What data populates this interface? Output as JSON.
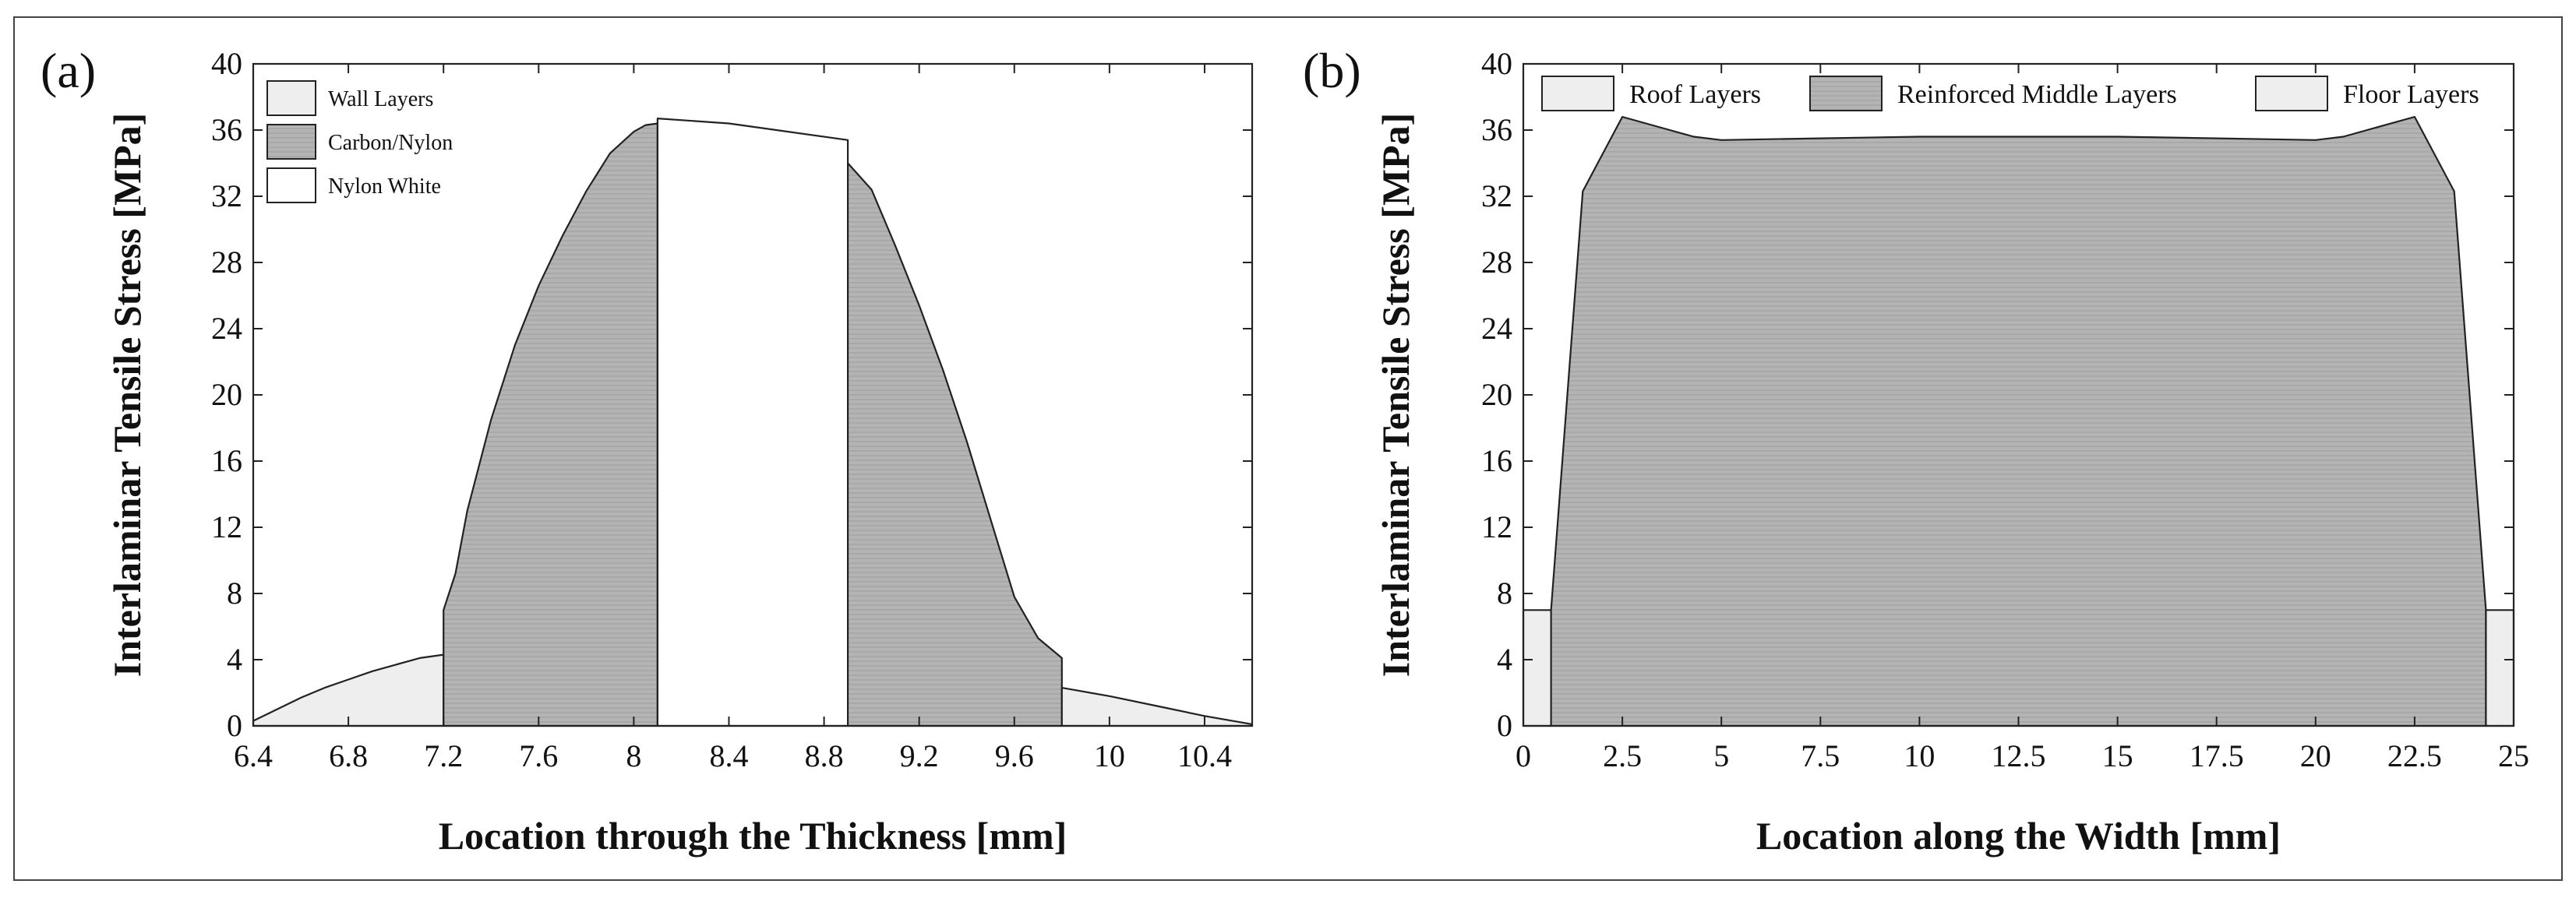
{
  "chart_data": [
    {
      "panel_label": "(a)",
      "type": "area",
      "xlabel": "Location through the Thickness [mm]",
      "ylabel": "Interlaminar Tensile Stress [MPa]",
      "xlim": [
        6.4,
        10.6
      ],
      "ylim": [
        0,
        40
      ],
      "xticks": [
        6.4,
        6.8,
        7.2,
        7.6,
        8,
        8.4,
        8.8,
        9.2,
        9.6,
        10,
        10.4
      ],
      "yticks": [
        0,
        4,
        8,
        12,
        16,
        20,
        24,
        28,
        32,
        36,
        40
      ],
      "legend_position": "top-left",
      "legend": [
        {
          "label": "Wall Layers",
          "color": "#eeeeee"
        },
        {
          "label": "Carbon/Nylon",
          "color": "#b4b4b4"
        },
        {
          "label": "Nylon White",
          "color": "#ffffff"
        }
      ],
      "series": [
        {
          "name": "Wall Layers",
          "color": "#eeeeee",
          "x": [
            6.4,
            6.5,
            6.6,
            6.7,
            6.8,
            6.9,
            7.0,
            7.1,
            7.2
          ],
          "y": [
            0.3,
            1.0,
            1.7,
            2.3,
            2.8,
            3.3,
            3.7,
            4.1,
            4.3
          ]
        },
        {
          "name": "Carbon/Nylon",
          "color": "#b4b4b4",
          "x": [
            7.2,
            7.2,
            7.25,
            7.3,
            7.4,
            7.5,
            7.6,
            7.7,
            7.8,
            7.9,
            8.0,
            8.05,
            8.1,
            8.1
          ],
          "y": [
            0,
            7.0,
            9.2,
            13.0,
            18.5,
            23.0,
            26.6,
            29.6,
            32.3,
            34.6,
            35.9,
            36.3,
            36.4,
            0
          ]
        },
        {
          "name": "Nylon White",
          "color": "#ffffff",
          "x": [
            8.1,
            8.1,
            8.4,
            8.9,
            8.9
          ],
          "y": [
            0,
            36.7,
            36.4,
            35.4,
            0
          ]
        },
        {
          "name": "Carbon/Nylon",
          "color": "#b4b4b4",
          "x": [
            8.9,
            8.9,
            9.0,
            9.1,
            9.2,
            9.3,
            9.4,
            9.5,
            9.6,
            9.7,
            9.8,
            9.8
          ],
          "y": [
            0,
            34.0,
            32.4,
            29.0,
            25.4,
            21.5,
            17.2,
            12.5,
            7.8,
            5.3,
            4.1,
            0
          ]
        },
        {
          "name": "Wall Layers",
          "color": "#eeeeee",
          "x": [
            9.8,
            10.0,
            10.2,
            10.4,
            10.6
          ],
          "y": [
            2.3,
            1.8,
            1.2,
            0.6,
            0.1
          ]
        }
      ]
    },
    {
      "panel_label": "(b)",
      "type": "area",
      "xlabel": "Location along the Width [mm]",
      "ylabel": "Interlaminar Tensile Stress [MPa]",
      "xlim": [
        0,
        25
      ],
      "ylim": [
        0,
        40
      ],
      "xticks": [
        0,
        2.5,
        5,
        7.5,
        10,
        12.5,
        15,
        17.5,
        20,
        22.5,
        25
      ],
      "yticks": [
        0,
        4,
        8,
        12,
        16,
        20,
        24,
        28,
        32,
        36,
        40
      ],
      "legend_position": "top",
      "legend": [
        {
          "label": "Roof Layers",
          "color": "#eeeeee"
        },
        {
          "label": "Reinforced Middle Layers",
          "color": "#b4b4b4"
        },
        {
          "label": "Floor Layers",
          "color": "#eeeeee"
        }
      ],
      "series": [
        {
          "name": "Roof Layers",
          "color": "#eeeeee",
          "x": [
            0,
            0.7
          ],
          "y": [
            7.0,
            7.0
          ]
        },
        {
          "name": "Reinforced Middle Layers",
          "color": "#b4b4b4",
          "x": [
            0.7,
            1.5,
            2.5,
            4.3,
            5.0,
            7.5,
            10,
            12.5,
            15,
            17.5,
            20,
            20.7,
            22.5,
            23.5,
            24.3
          ],
          "y": [
            7.0,
            32.3,
            36.8,
            35.6,
            35.4,
            35.5,
            35.6,
            35.6,
            35.6,
            35.5,
            35.4,
            35.6,
            36.8,
            32.3,
            7.0
          ]
        },
        {
          "name": "Floor Layers",
          "color": "#eeeeee",
          "x": [
            24.3,
            25
          ],
          "y": [
            7.0,
            7.0
          ]
        }
      ]
    }
  ]
}
